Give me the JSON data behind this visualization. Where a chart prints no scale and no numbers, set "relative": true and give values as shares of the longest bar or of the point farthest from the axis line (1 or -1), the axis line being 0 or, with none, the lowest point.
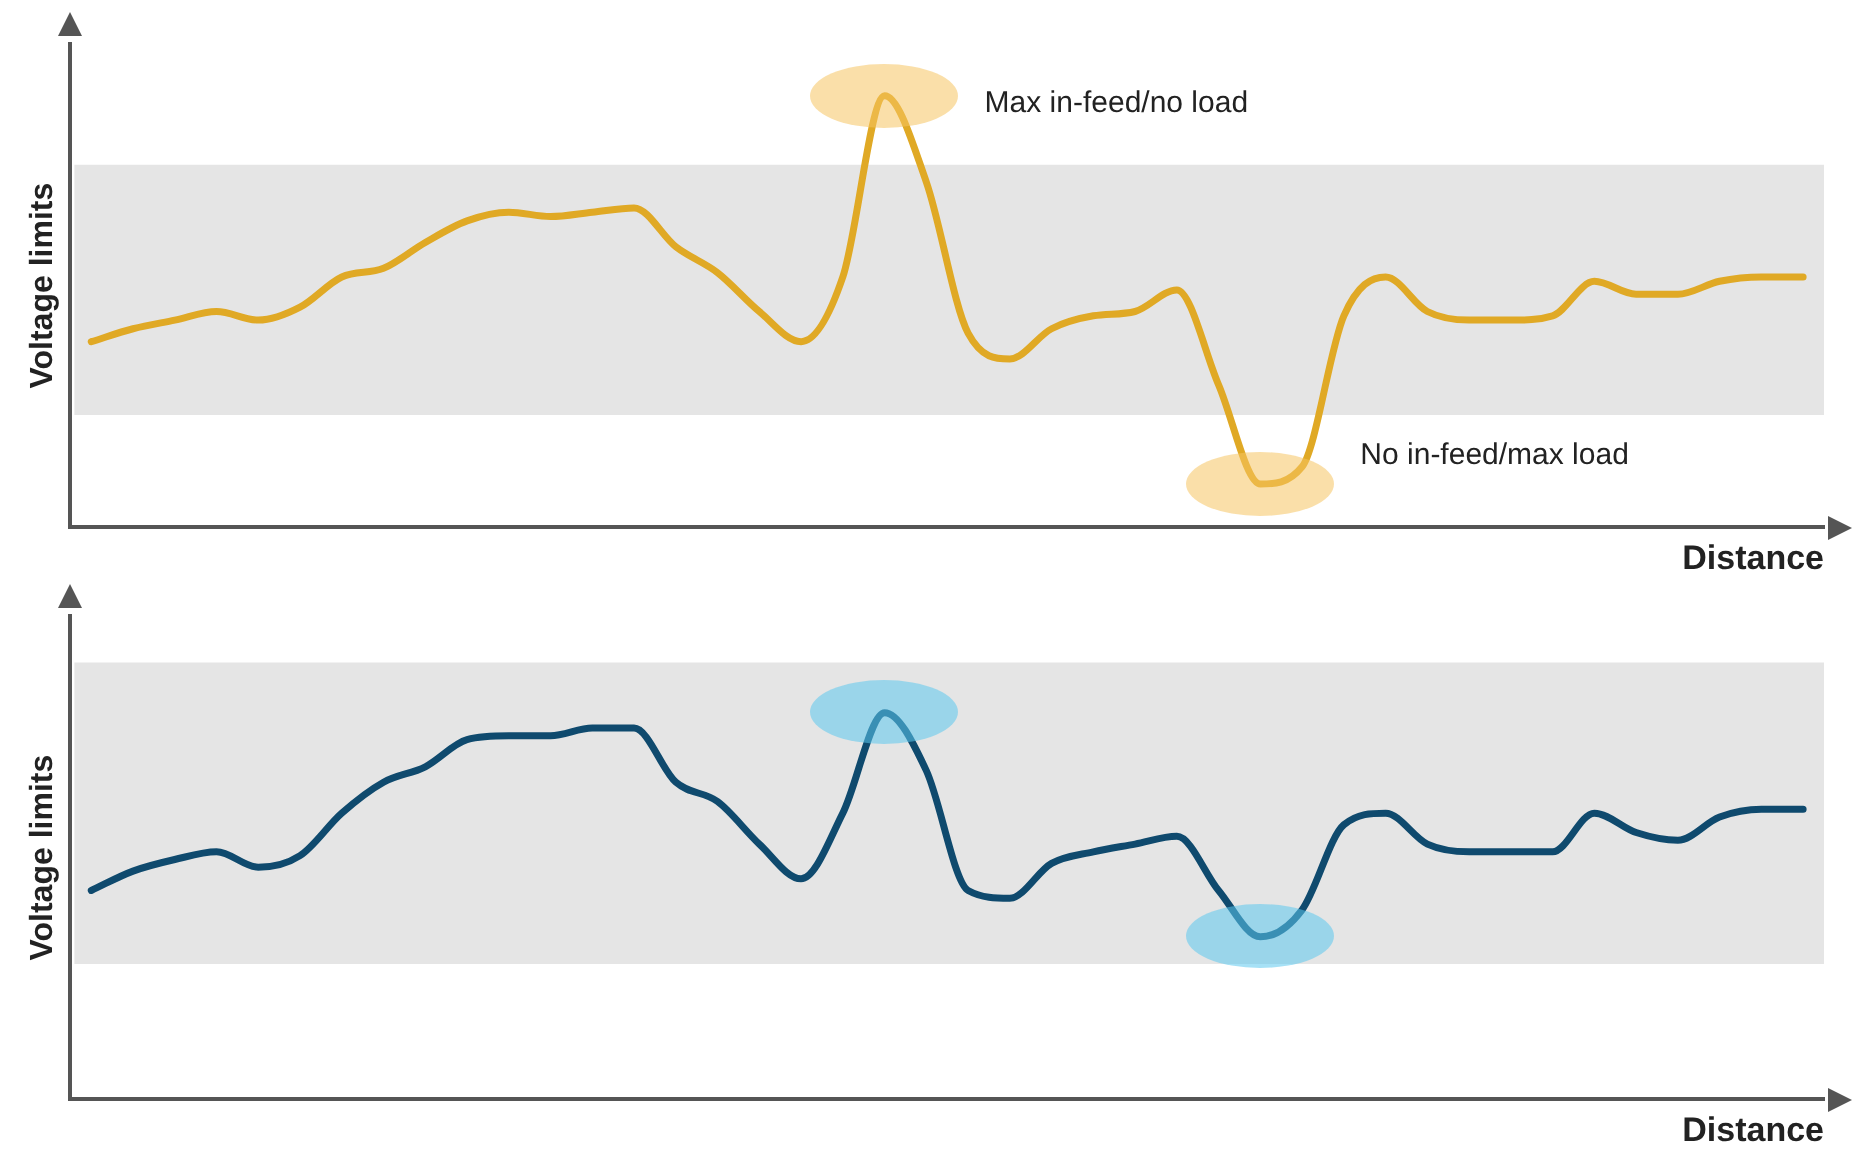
{
  "chart_data": [
    {
      "type": "line",
      "relative": true,
      "ylabel": "Voltage limits",
      "xlabel": "Distance",
      "grid": false,
      "legend": false,
      "tick_labels": false,
      "marker": "none",
      "line_style": "solid",
      "categories": [
        null,
        null,
        null,
        null,
        null,
        null,
        null,
        null,
        null,
        null,
        null,
        null,
        null,
        null,
        null,
        null,
        null,
        null,
        null,
        null,
        null,
        null,
        null,
        null,
        null,
        null,
        null,
        null,
        null,
        null,
        null,
        null,
        null,
        null,
        null,
        null,
        null,
        null,
        null,
        null,
        null,
        null
      ],
      "series": [
        {
          "color": "#e0a925",
          "values": [
            0.43,
            0.46,
            0.48,
            0.5,
            0.48,
            0.51,
            0.58,
            0.6,
            0.66,
            0.71,
            0.73,
            0.72,
            0.73,
            0.74,
            0.65,
            0.59,
            0.5,
            0.43,
            0.58,
            1,
            0.8,
            0.45,
            0.39,
            0.46,
            0.49,
            0.5,
            0.55,
            0.33,
            0.1,
            0.14,
            0.49,
            0.58,
            0.5,
            0.48,
            0.48,
            0.49,
            0.57,
            0.54,
            0.54,
            0.57,
            0.58,
            0.58
          ]
        }
      ],
      "bands": [
        {
          "axis": "y",
          "from": 0.26,
          "to": 0.84,
          "color": "#e5e5e5"
        }
      ],
      "annotations": [
        "Max in-feed/no load",
        "No in-feed/max load"
      ]
    },
    {
      "type": "line",
      "relative": true,
      "ylabel": "Voltage limits",
      "xlabel": "Distance",
      "grid": false,
      "legend": false,
      "tick_labels": false,
      "marker": "none",
      "line_style": "solid",
      "categories": [
        null,
        null,
        null,
        null,
        null,
        null,
        null,
        null,
        null,
        null,
        null,
        null,
        null,
        null,
        null,
        null,
        null,
        null,
        null,
        null,
        null,
        null,
        null,
        null,
        null,
        null,
        null,
        null,
        null,
        null,
        null,
        null,
        null,
        null,
        null,
        null,
        null,
        null,
        null,
        null,
        null,
        null
      ],
      "series": [
        {
          "color": "#0f4a6e",
          "values": [
            0.54,
            0.59,
            0.62,
            0.64,
            0.6,
            0.63,
            0.74,
            0.82,
            0.86,
            0.93,
            0.94,
            0.94,
            0.96,
            0.96,
            0.82,
            0.77,
            0.66,
            0.57,
            0.74,
            1,
            0.85,
            0.54,
            0.52,
            0.61,
            0.64,
            0.66,
            0.68,
            0.54,
            0.42,
            0.49,
            0.71,
            0.74,
            0.66,
            0.64,
            0.64,
            0.64,
            0.74,
            0.69,
            0.67,
            0.73,
            0.75,
            0.75
          ]
        }
      ],
      "bands": [
        {
          "axis": "y",
          "from": 0.35,
          "to": 1.13,
          "color": "#e5e5e5"
        }
      ]
    }
  ]
}
